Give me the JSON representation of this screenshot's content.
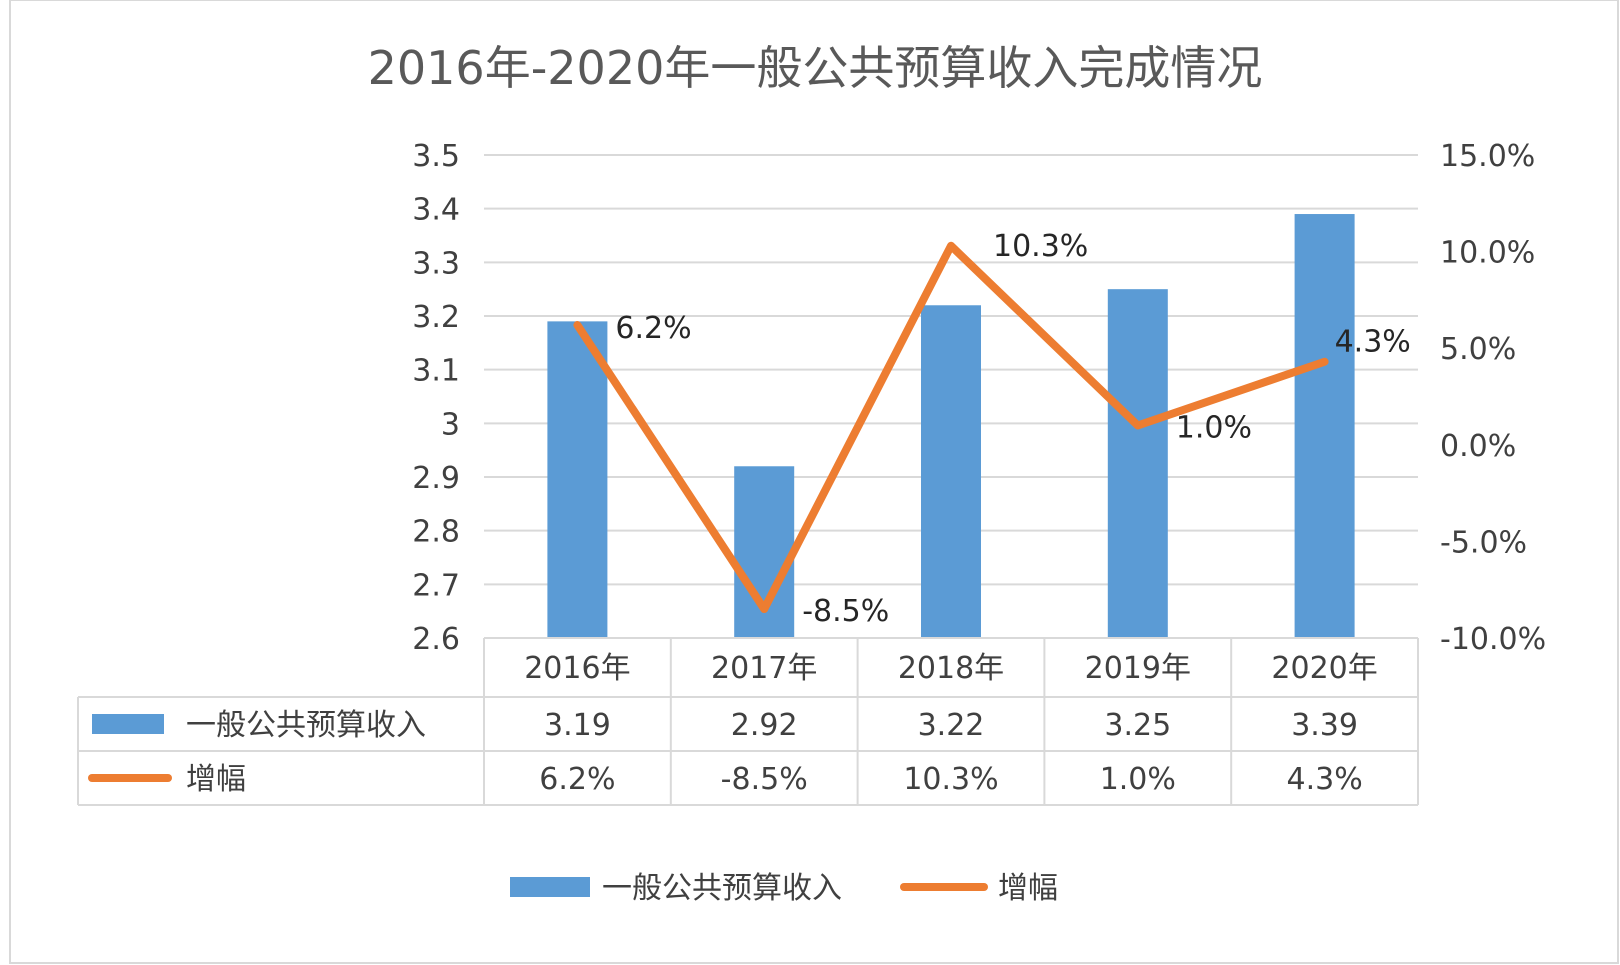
{
  "chart_data": {
    "type": "bar",
    "title": "2016年-2020年一般公共预算收入完成情况",
    "categories": [
      "2016年",
      "2017年",
      "2018年",
      "2019年",
      "2020年"
    ],
    "series": [
      {
        "name": "一般公共预算收入",
        "type": "bar",
        "axis": "left",
        "values": [
          3.19,
          2.92,
          3.22,
          3.25,
          3.39
        ],
        "value_labels": [
          "3.19",
          "2.92",
          "3.22",
          "3.25",
          "3.39"
        ],
        "color": "#5B9BD5"
      },
      {
        "name": "增幅",
        "type": "line",
        "axis": "right",
        "values": [
          6.2,
          -8.5,
          10.3,
          1.0,
          4.3
        ],
        "value_labels": [
          "6.2%",
          "-8.5%",
          "10.3%",
          "1.0%",
          "4.3%"
        ],
        "color": "#ED7D31"
      }
    ],
    "y_left": {
      "ylim": [
        2.6,
        3.5
      ],
      "ticks": [
        2.6,
        2.7,
        2.8,
        2.9,
        3.0,
        3.1,
        3.2,
        3.3,
        3.4,
        3.5
      ],
      "tick_labels": [
        "2.6",
        "2.7",
        "2.8",
        "2.9",
        "3",
        "3.1",
        "3.2",
        "3.3",
        "3.4",
        "3.5"
      ]
    },
    "y_right": {
      "ylim": [
        -10,
        15
      ],
      "ticks": [
        -10,
        -5,
        0,
        5,
        10,
        15
      ],
      "tick_labels": [
        "-10.0%",
        "-5.0%",
        "0.0%",
        "5.0%",
        "10.0%",
        "15.0%"
      ]
    },
    "grid": true,
    "data_table": true,
    "legend_position": "bottom",
    "colors": {
      "grid": "#D9D9D9",
      "text": "#404040",
      "title": "#595959"
    }
  }
}
